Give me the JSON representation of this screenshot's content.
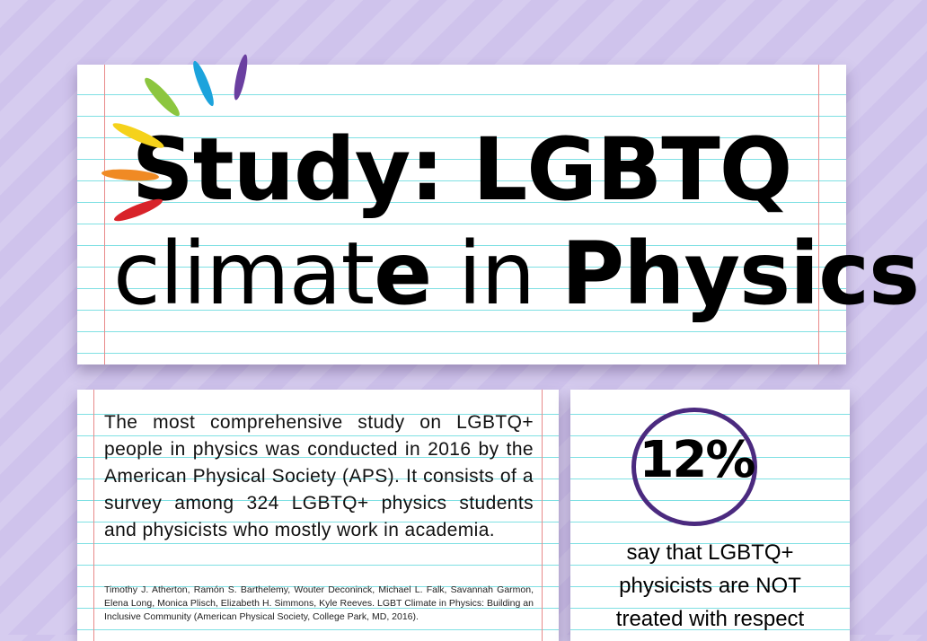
{
  "title": {
    "line1_part1": "Study: ",
    "line1_part2": "LGBTQ",
    "line2_part1": "climat",
    "line2_part2": "e",
    "line2_part3": " in ",
    "line2_part4": "Physics"
  },
  "info": {
    "body": "The most comprehensive study on LGBTQ+ people in physics was conducted in 2016 by the American Physical Society (APS). It consists of a survey among 324 LGBTQ+ physics students and physicists  who mostly work in academia.",
    "citation": "Timothy J. Atherton, Ramón S. Barthelemy, Wouter Deconinck, Michael L. Falk, Savannah Garmon, Elena Long, Monica Plisch, Elizabeth H. Simmons, Kyle Reeves. LGBT Climate in Physics: Building an Inclusive Community (American Physical Society, College Park, MD, 2016)."
  },
  "stat": {
    "value": "12%",
    "caption_line1": "say that LGBTQ+",
    "caption_line2": "physicists are NOT",
    "caption_line3": "treated with respect"
  },
  "colors": {
    "background": "#d6ccef",
    "ruled_line": "#7fe0e3",
    "margin_line": "#e88a8a",
    "circle": "#4b2a7f",
    "rainbow": [
      "#d8232a",
      "#f08a24",
      "#f5d21b",
      "#8cc63f",
      "#1ca3dc",
      "#6a3fa0"
    ]
  }
}
